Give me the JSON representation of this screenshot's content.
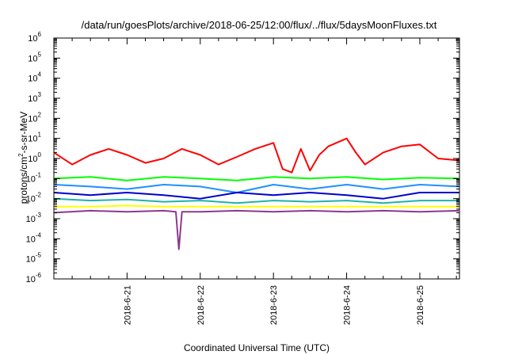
{
  "chart_data": {
    "type": "line",
    "title": "/data/run/goesPlots/archive/2018-06-25/12:00/flux/../flux/5daysMoonFluxes.txt",
    "xlabel": "Coordinated Universal Time (UTC)",
    "ylabel": "protons/cm2-s-sr-MeV",
    "yscale": "log",
    "ylim": [
      1e-06,
      1000000.0
    ],
    "xlim": [
      "2018-06-20T00:00",
      "2018-06-25T13:00"
    ],
    "grid": false,
    "legend": "none",
    "xticks": [
      {
        "x": "2018-06-21T00:00",
        "label": "2018-6-21"
      },
      {
        "x": "2018-06-22T00:00",
        "label": "2018-6-22"
      },
      {
        "x": "2018-06-23T00:00",
        "label": "2018-6-23"
      },
      {
        "x": "2018-06-24T00:00",
        "label": "2018-6-24"
      },
      {
        "x": "2018-06-25T00:00",
        "label": "2018-6-25"
      }
    ],
    "yticks": [
      {
        "base": "10",
        "exp": "-6"
      },
      {
        "base": "10",
        "exp": "-5"
      },
      {
        "base": "10",
        "exp": "-4"
      },
      {
        "base": "10",
        "exp": "-3"
      },
      {
        "base": "10",
        "exp": "-2"
      },
      {
        "base": "10",
        "exp": "-1"
      },
      {
        "base": "10",
        "exp": "0"
      },
      {
        "base": "10",
        "exp": "1"
      },
      {
        "base": "10",
        "exp": "2"
      },
      {
        "base": "10",
        "exp": "3"
      },
      {
        "base": "10",
        "exp": "4"
      },
      {
        "base": "10",
        "exp": "5"
      },
      {
        "base": "10",
        "exp": "6"
      }
    ],
    "series": [
      {
        "color": "#ff0000",
        "x": [
          "2018-06-20T00:00",
          "2018-06-20T06:00",
          "2018-06-20T12:00",
          "2018-06-20T18:00",
          "2018-06-21T00:00",
          "2018-06-21T06:00",
          "2018-06-21T12:00",
          "2018-06-21T18:00",
          "2018-06-22T00:00",
          "2018-06-22T06:00",
          "2018-06-22T12:00",
          "2018-06-22T18:00",
          "2018-06-23T00:00",
          "2018-06-23T03:00",
          "2018-06-23T06:00",
          "2018-06-23T09:00",
          "2018-06-23T12:00",
          "2018-06-23T15:00",
          "2018-06-23T18:00",
          "2018-06-24T00:00",
          "2018-06-24T03:00",
          "2018-06-24T06:00",
          "2018-06-24T12:00",
          "2018-06-24T18:00",
          "2018-06-25T00:00",
          "2018-06-25T06:00",
          "2018-06-25T13:00"
        ],
        "y": [
          2,
          0.5,
          1.5,
          3,
          1.5,
          0.6,
          1,
          3,
          1.5,
          0.5,
          1.2,
          3,
          6,
          0.3,
          0.2,
          3,
          0.25,
          1.5,
          4,
          10,
          2,
          0.5,
          2,
          4,
          5,
          1,
          0.8
        ]
      },
      {
        "color": "#00ff00",
        "x": [
          "2018-06-20T00:00",
          "2018-06-20T12:00",
          "2018-06-21T00:00",
          "2018-06-21T12:00",
          "2018-06-22T00:00",
          "2018-06-22T12:00",
          "2018-06-23T00:00",
          "2018-06-23T12:00",
          "2018-06-24T00:00",
          "2018-06-24T12:00",
          "2018-06-25T00:00",
          "2018-06-25T13:00"
        ],
        "y": [
          0.1,
          0.12,
          0.08,
          0.12,
          0.1,
          0.08,
          0.12,
          0.1,
          0.12,
          0.09,
          0.11,
          0.1
        ]
      },
      {
        "color": "#1e90ff",
        "x": [
          "2018-06-20T00:00",
          "2018-06-20T12:00",
          "2018-06-21T00:00",
          "2018-06-21T12:00",
          "2018-06-22T00:00",
          "2018-06-22T12:00",
          "2018-06-23T00:00",
          "2018-06-23T12:00",
          "2018-06-24T00:00",
          "2018-06-24T12:00",
          "2018-06-25T00:00",
          "2018-06-25T13:00"
        ],
        "y": [
          0.05,
          0.04,
          0.03,
          0.05,
          0.04,
          0.02,
          0.05,
          0.03,
          0.05,
          0.03,
          0.05,
          0.04
        ]
      },
      {
        "color": "#0000cd",
        "x": [
          "2018-06-20T00:00",
          "2018-06-20T12:00",
          "2018-06-21T00:00",
          "2018-06-21T12:00",
          "2018-06-22T00:00",
          "2018-06-22T12:00",
          "2018-06-23T00:00",
          "2018-06-23T12:00",
          "2018-06-24T00:00",
          "2018-06-24T12:00",
          "2018-06-25T00:00",
          "2018-06-25T13:00"
        ],
        "y": [
          0.02,
          0.015,
          0.02,
          0.015,
          0.01,
          0.02,
          0.015,
          0.02,
          0.015,
          0.01,
          0.02,
          0.02
        ]
      },
      {
        "color": "#20b2aa",
        "x": [
          "2018-06-20T00:00",
          "2018-06-20T12:00",
          "2018-06-21T00:00",
          "2018-06-21T12:00",
          "2018-06-22T00:00",
          "2018-06-22T12:00",
          "2018-06-23T00:00",
          "2018-06-23T12:00",
          "2018-06-24T00:00",
          "2018-06-24T12:00",
          "2018-06-25T00:00",
          "2018-06-25T13:00"
        ],
        "y": [
          0.01,
          0.008,
          0.009,
          0.007,
          0.008,
          0.006,
          0.008,
          0.007,
          0.008,
          0.006,
          0.008,
          0.008
        ]
      },
      {
        "color": "#ffff00",
        "x": [
          "2018-06-20T00:00",
          "2018-06-20T12:00",
          "2018-06-21T00:00",
          "2018-06-21T12:00",
          "2018-06-22T00:00",
          "2018-06-22T12:00",
          "2018-06-23T00:00",
          "2018-06-23T12:00",
          "2018-06-24T00:00",
          "2018-06-24T12:00",
          "2018-06-25T00:00",
          "2018-06-25T13:00"
        ],
        "y": [
          0.004,
          0.004,
          0.0045,
          0.004,
          0.004,
          0.004,
          0.004,
          0.004,
          0.004,
          0.004,
          0.004,
          0.004
        ]
      },
      {
        "color": "#8b3a8b",
        "x": [
          "2018-06-20T00:00",
          "2018-06-20T12:00",
          "2018-06-21T00:00",
          "2018-06-21T12:00",
          "2018-06-21T16:00",
          "2018-06-21T17:00",
          "2018-06-21T18:00",
          "2018-06-22T00:00",
          "2018-06-22T12:00",
          "2018-06-23T00:00",
          "2018-06-23T12:00",
          "2018-06-24T00:00",
          "2018-06-24T12:00",
          "2018-06-25T00:00",
          "2018-06-25T13:00"
        ],
        "y": [
          0.002,
          0.0025,
          0.0022,
          0.0025,
          0.0022,
          3e-05,
          0.0022,
          0.0022,
          0.0025,
          0.0022,
          0.0025,
          0.0022,
          0.0025,
          0.0022,
          0.0025
        ]
      }
    ]
  }
}
